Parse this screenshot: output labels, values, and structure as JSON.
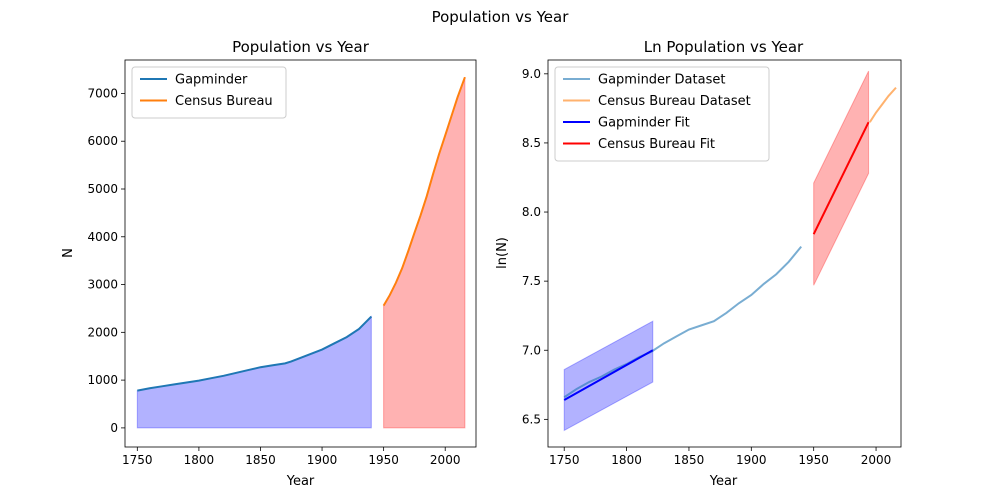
{
  "figure": {
    "suptitle": "Population vs Year"
  },
  "colors": {
    "tab_blue": "#1f77b4",
    "tab_orange": "#ff7f0e",
    "blue_fill": "#0000ff",
    "red_fill": "#ff0000",
    "pure_blue": "#0000ff",
    "pure_red": "#ff0000"
  },
  "chart_data": [
    {
      "type": "area",
      "title": "Population vs Year",
      "xlabel": "Year",
      "ylabel": "N",
      "xlim": [
        1740,
        2025
      ],
      "ylim": [
        -400,
        7700
      ],
      "xticks": [
        1750,
        1800,
        1850,
        1900,
        1950,
        2000
      ],
      "yticks": [
        0,
        1000,
        2000,
        3000,
        4000,
        5000,
        6000,
        7000
      ],
      "legend_position": "top-left",
      "series": [
        {
          "name": "Gapminder",
          "x": [
            1750,
            1760,
            1770,
            1780,
            1790,
            1800,
            1810,
            1820,
            1830,
            1840,
            1850,
            1860,
            1870,
            1875,
            1880,
            1890,
            1900,
            1910,
            1920,
            1930,
            1940
          ],
          "y": [
            780,
            830,
            870,
            910,
            950,
            990,
            1040,
            1090,
            1150,
            1210,
            1270,
            1310,
            1350,
            1390,
            1440,
            1540,
            1640,
            1770,
            1900,
            2070,
            2330
          ]
        },
        {
          "name": "Census Bureau",
          "x": [
            1950,
            1955,
            1960,
            1965,
            1970,
            1975,
            1980,
            1985,
            1990,
            1995,
            2000,
            2005,
            2010,
            2016
          ],
          "y": [
            2560,
            2780,
            3040,
            3340,
            3700,
            4080,
            4450,
            4850,
            5300,
            5730,
            6120,
            6520,
            6920,
            7340
          ]
        }
      ]
    },
    {
      "type": "line",
      "title": "Ln Population vs Year",
      "xlabel": "Year",
      "ylabel": "ln(N)",
      "xlim": [
        1737,
        2020
      ],
      "ylim": [
        6.3,
        9.1
      ],
      "xticks": [
        1750,
        1800,
        1850,
        1900,
        1950,
        2000
      ],
      "yticks": [
        6.5,
        7.0,
        7.5,
        8.0,
        8.5,
        9.0
      ],
      "legend_position": "top-left",
      "series": [
        {
          "name": "Gapminder Dataset",
          "x": [
            1750,
            1760,
            1770,
            1780,
            1790,
            1800,
            1810,
            1820,
            1830,
            1840,
            1850,
            1860,
            1870,
            1875,
            1880,
            1890,
            1900,
            1910,
            1920,
            1930,
            1940
          ],
          "y": [
            6.66,
            6.72,
            6.77,
            6.81,
            6.86,
            6.9,
            6.95,
            6.99,
            7.05,
            7.1,
            7.15,
            7.18,
            7.21,
            7.24,
            7.27,
            7.34,
            7.4,
            7.48,
            7.55,
            7.64,
            7.75
          ]
        },
        {
          "name": "Census Bureau Dataset",
          "x": [
            1995,
            2000,
            2005,
            2010,
            2016
          ],
          "y": [
            8.65,
            8.72,
            8.78,
            8.84,
            8.9
          ]
        },
        {
          "name": "Gapminder Fit",
          "x": [
            1750,
            1821
          ],
          "y": [
            6.64,
            7.0
          ],
          "band_lower": [
            6.42,
            6.77
          ],
          "band_upper": [
            6.86,
            7.21
          ]
        },
        {
          "name": "Census Bureau Fit",
          "x": [
            1950,
            1994
          ],
          "y": [
            7.84,
            8.65
          ],
          "band_lower": [
            7.47,
            8.28
          ],
          "band_upper": [
            8.21,
            9.02
          ]
        }
      ]
    }
  ]
}
